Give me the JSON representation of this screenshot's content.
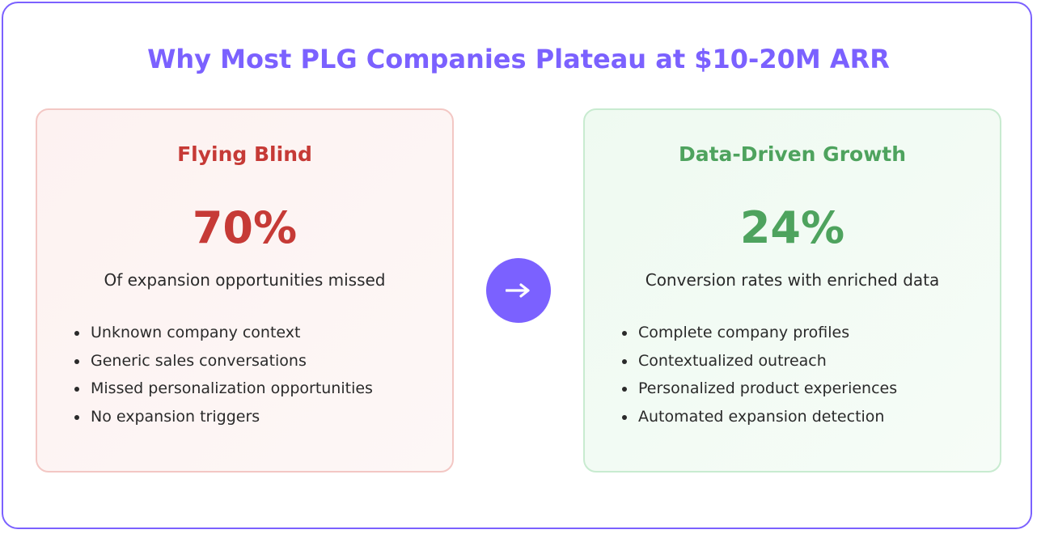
{
  "title": "Why Most PLG Companies Plateau at $10-20M ARR",
  "colors": {
    "accent": "#7b61ff",
    "negative": "#c63a36",
    "positive": "#4ea35e"
  },
  "left_card": {
    "title": "Flying Blind",
    "stat": "70%",
    "caption": "Of expansion opportunities missed",
    "bullets": [
      "Unknown company context",
      "Generic sales conversations",
      "Missed personalization opportunities",
      "No expansion triggers"
    ]
  },
  "arrow": {
    "icon": "arrow-right-icon"
  },
  "right_card": {
    "title": "Data-Driven Growth",
    "stat": "24%",
    "caption": "Conversion rates with enriched data",
    "bullets": [
      "Complete company profiles",
      "Contextualized outreach",
      "Personalized product experiences",
      "Automated expansion detection"
    ]
  }
}
